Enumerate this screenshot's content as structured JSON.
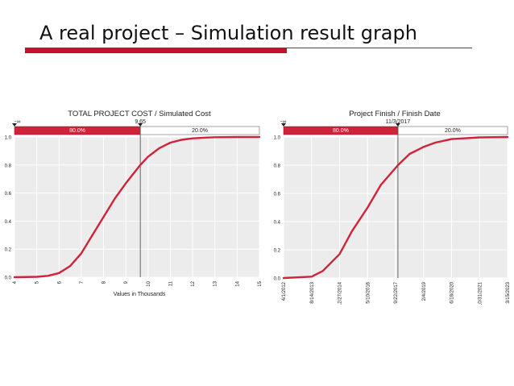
{
  "slide": {
    "title": "A real project – Simulation result graph",
    "accent_color": "#c8102e"
  },
  "chart_data": [
    {
      "type": "line",
      "title": "TOTAL PROJECT COST / Simulated Cost",
      "xlabel": "Values in Thousands",
      "ylabel": "",
      "x_ticks": [
        "4",
        "5",
        "6",
        "7",
        "8",
        "9",
        "10",
        "11",
        "12",
        "13",
        "14",
        "15"
      ],
      "y_ticks": [
        "0.0",
        "0.2",
        "0.4",
        "0.6",
        "0.8",
        "1.0"
      ],
      "xlim": [
        4,
        15
      ],
      "ylim": [
        0,
        1
      ],
      "marker_left": "-∞",
      "marker_value": "9.65",
      "marker_x": 9.65,
      "band_left_label": "80.0%",
      "band_right_label": "20.0%",
      "grid": true,
      "series_color": "#d0233a",
      "x": [
        4.0,
        5.0,
        5.5,
        6.0,
        6.5,
        7.0,
        7.5,
        8.0,
        8.5,
        9.0,
        9.65,
        10.0,
        10.5,
        11.0,
        11.5,
        12.0,
        12.5,
        13.0,
        14.0,
        15.0
      ],
      "y": [
        0.0,
        0.003,
        0.01,
        0.03,
        0.08,
        0.17,
        0.3,
        0.43,
        0.56,
        0.67,
        0.8,
        0.86,
        0.92,
        0.96,
        0.98,
        0.99,
        0.995,
        0.998,
        1.0,
        1.0
      ]
    },
    {
      "type": "line",
      "title": "Project Finish / Finish Date",
      "xlabel": "",
      "ylabel": "",
      "x_ticks": [
        "4/1/2012",
        "8/14/2013",
        "12/27/2014",
        "5/10/2016",
        "9/22/2017",
        "2/4/2019",
        "6/18/2020",
        "10/31/2021",
        "3/15/2023"
      ],
      "y_ticks": [
        "0.0",
        "0.2",
        "0.4",
        "0.6",
        "0.8",
        "1.0"
      ],
      "xlim": [
        "4/1/2012",
        "3/15/2023"
      ],
      "ylim": [
        0,
        1
      ],
      "marker_left": "-∞",
      "marker_value": "11/3/2017",
      "marker_x": "11/3/2017",
      "band_left_label": "80.0%",
      "band_right_label": "20.0%",
      "grid": true,
      "series_color": "#d0233a",
      "x": [
        "4/1/2012",
        "8/14/2013",
        "3/1/2014",
        "12/27/2014",
        "8/1/2015",
        "5/10/2016",
        "1/1/2017",
        "11/3/2017",
        "6/1/2018",
        "2/4/2019",
        "9/1/2019",
        "6/18/2020",
        "10/31/2021",
        "3/15/2023"
      ],
      "y": [
        0.0,
        0.01,
        0.05,
        0.17,
        0.33,
        0.5,
        0.66,
        0.8,
        0.88,
        0.93,
        0.96,
        0.985,
        0.997,
        1.0
      ]
    }
  ]
}
